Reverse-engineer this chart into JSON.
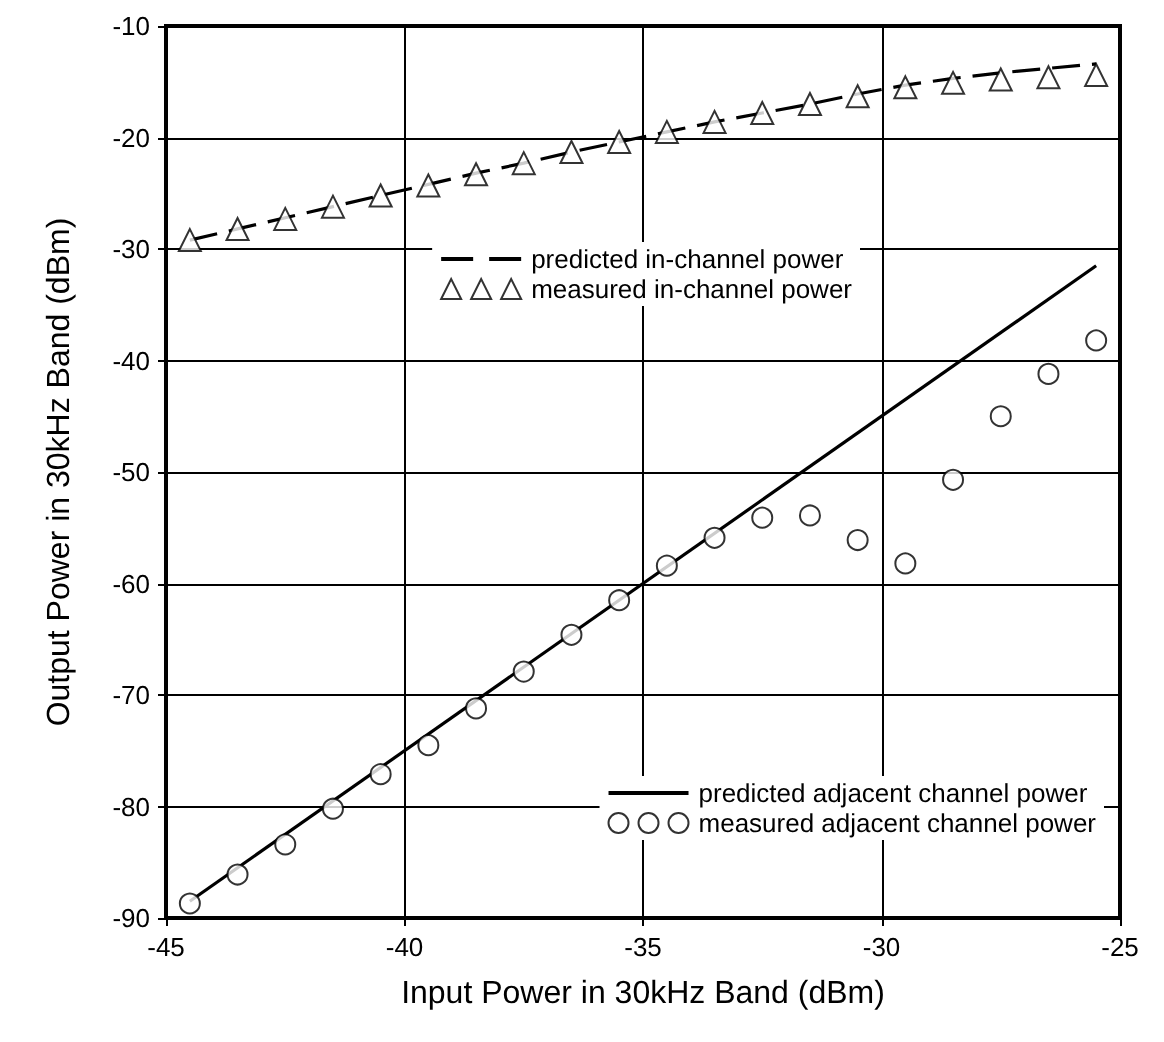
{
  "chart_data": {
    "type": "line",
    "xlabel": "Input Power in 30kHz Band (dBm)",
    "ylabel": "Output Power in 30kHz Band (dBm)",
    "xlim": [
      -45,
      -25
    ],
    "xticks": [
      -45,
      -40,
      -35,
      -30,
      -25
    ],
    "ylim": [
      -90,
      -10
    ],
    "yticks": [
      -90,
      -80,
      -70,
      -60,
      -50,
      -40,
      -30,
      -20,
      -10
    ],
    "grid": true,
    "legend": "right",
    "series": [
      {
        "name": "predicted in-channel power",
        "type": "line",
        "color": "#000000",
        "marker": "none",
        "line_style": "dashed",
        "x": [
          -44.5,
          -43.5,
          -42.5,
          -41.5,
          -40.5,
          -39.5,
          -38.5,
          -37.5,
          -36.5,
          -35.5,
          -34.5,
          -33.5,
          -32.5,
          -31.5,
          -30.5,
          -29.5,
          -28.5,
          -27.5,
          -26.5,
          -25.5
        ],
        "values": [
          -29.2,
          -28.2,
          -27.2,
          -26.2,
          -25.2,
          -24.2,
          -23.2,
          -22.3,
          -21.3,
          -20.4,
          -19.5,
          -18.6,
          -17.8,
          -17.0,
          -16.1,
          -15.3,
          -14.7,
          -14.2,
          -13.8,
          -13.4
        ]
      },
      {
        "name": "measured in-channel power",
        "type": "scatter",
        "color": "#000000",
        "marker": "triangle",
        "x": [
          -44.5,
          -43.5,
          -42.5,
          -41.5,
          -40.5,
          -39.5,
          -38.5,
          -37.5,
          -36.5,
          -35.5,
          -34.5,
          -33.5,
          -32.5,
          -31.5,
          -30.5,
          -29.5,
          -28.5,
          -27.5,
          -26.5,
          -25.5
        ],
        "values": [
          -29.2,
          -28.2,
          -27.3,
          -26.2,
          -25.2,
          -24.3,
          -23.3,
          -22.3,
          -21.3,
          -20.4,
          -19.5,
          -18.6,
          -17.8,
          -17.0,
          -16.3,
          -15.5,
          -15.1,
          -14.8,
          -14.6,
          -14.4
        ]
      },
      {
        "name": "predicted adjacent channel power",
        "type": "line",
        "color": "#000000",
        "marker": "none",
        "line_style": "solid",
        "x": [
          -44.5,
          -25.5
        ],
        "values": [
          -88.5,
          -31.5
        ]
      },
      {
        "name": "measured adjacent channel power",
        "type": "scatter",
        "color": "#000000",
        "marker": "circle",
        "x": [
          -44.5,
          -43.5,
          -42.5,
          -41.5,
          -40.5,
          -39.5,
          -38.5,
          -37.5,
          -36.5,
          -35.5,
          -34.5,
          -33.5,
          -32.5,
          -31.5,
          -30.5,
          -29.5,
          -28.5,
          -27.5,
          -26.5,
          -25.5
        ],
        "values": [
          -88.7,
          -86.1,
          -83.4,
          -80.2,
          -77.1,
          -74.5,
          -71.2,
          -67.9,
          -64.6,
          -61.5,
          -58.4,
          -55.9,
          -54.1,
          -53.9,
          -56.1,
          -58.2,
          -50.7,
          -45.0,
          -41.2,
          -38.2
        ]
      }
    ]
  }
}
